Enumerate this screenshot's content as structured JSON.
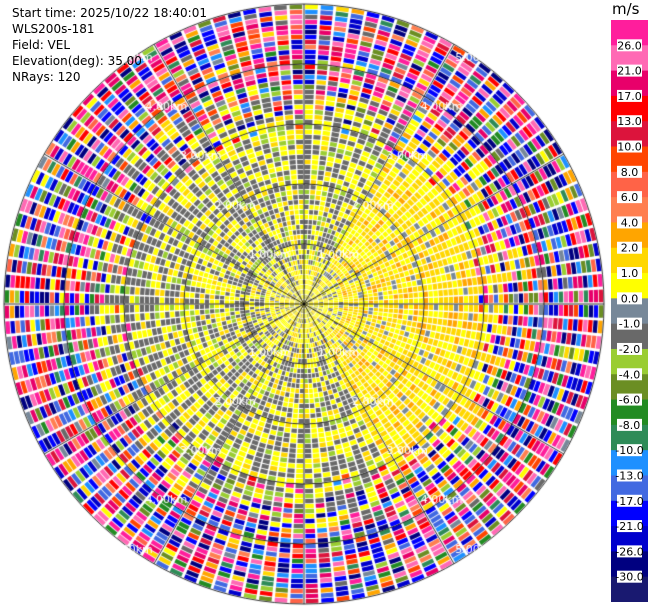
{
  "header": {
    "start_time": "Start time: 2025/10/22 18:40:01",
    "instrument": "WLS200s-181",
    "field": "Field: VEL",
    "elevation": "Elevation(deg): 35.00",
    "nrays": "NRays: 120"
  },
  "chart_data": {
    "type": "heatmap",
    "projection": "polar-ppi",
    "field": "VEL",
    "elevation_deg": 35.0,
    "nrays": 120,
    "unit": "m/s",
    "max_range_km": 5.0,
    "range_rings_km": [
      1,
      2,
      3,
      4,
      5
    ],
    "ring_labels": [
      "1.00km",
      "2.00km",
      "3.00km",
      "4.00km",
      "5.00km"
    ],
    "colorbar": {
      "unit": "m/s",
      "tick_labels": [
        "26.0",
        "21.0",
        "17.0",
        "13.0",
        "10.0",
        "8.0",
        "6.0",
        "4.0",
        "2.0",
        "1.0",
        "0.0",
        "-1.0",
        "-2.0",
        "-4.0",
        "-6.0",
        "-8.0",
        "-10.0",
        "-13.0",
        "-17.0",
        "-21.0",
        "-26.0",
        "-30.0"
      ],
      "colors": [
        "#ff1e9c",
        "#ff69b4",
        "#e8006a",
        "#ff0000",
        "#dc143c",
        "#ff4500",
        "#ff6347",
        "#ff7f50",
        "#ffa500",
        "#ffd700",
        "#ffff00",
        "#778899",
        "#696969",
        "#9acd32",
        "#6b8e23",
        "#228b22",
        "#2e8b57",
        "#1e90ff",
        "#4169e1",
        "#0000ff",
        "#0000cd",
        "#000080",
        "#191970"
      ]
    },
    "pattern": {
      "valid_range_km": 3.5,
      "near_core": "gray, scattered yellow/green near 0 m/s within ~0.6 km",
      "positive_sector_deg": [
        30,
        150
      ],
      "positive_level_mps": 1.5,
      "negative_level_mps": -1.5,
      "outer_region": "noise / random colors beyond ~3.5 km"
    }
  }
}
